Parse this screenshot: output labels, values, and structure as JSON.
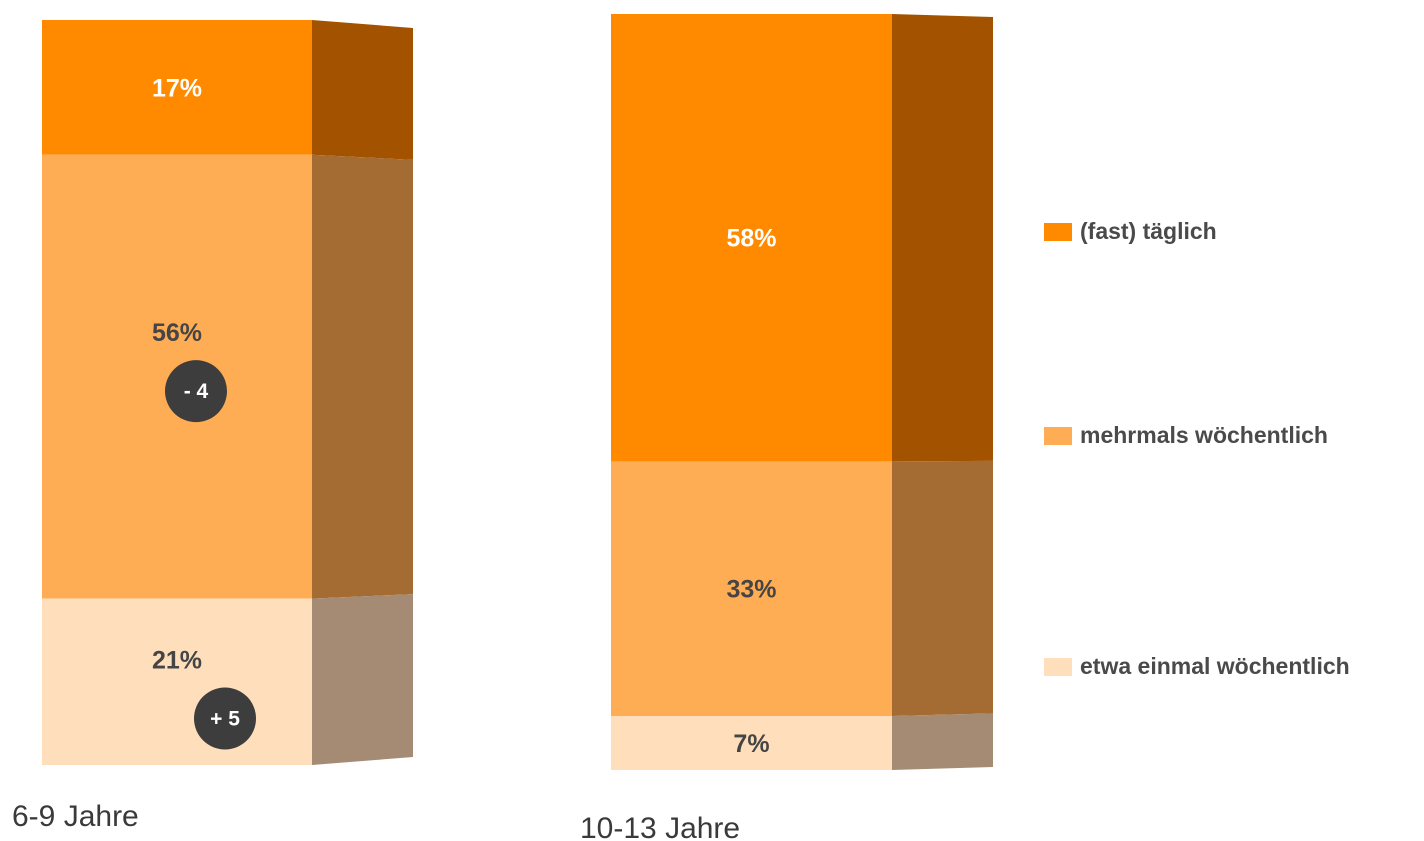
{
  "chart_data": {
    "type": "bar",
    "stacked": true,
    "categories": [
      "6-9 Jahre",
      "10-13 Jahre"
    ],
    "series": [
      {
        "name": "(fast) täglich",
        "color": "#ff8a00",
        "side_color": "#a35300",
        "label_color": "#ffffff",
        "values": [
          17,
          58
        ],
        "labels": [
          "17%",
          "58%"
        ]
      },
      {
        "name": "mehrmals wöchentlich",
        "color": "#ffad55",
        "side_color": "#a46c33",
        "label_color": "#454545",
        "values": [
          56,
          33
        ],
        "labels": [
          "56%",
          "33%"
        ]
      },
      {
        "name": "etwa einmal wöchentlich",
        "color": "#ffdfbb",
        "side_color": "#a58b73",
        "label_color": "#454545",
        "values": [
          21,
          7
        ],
        "labels": [
          "21%",
          "7%"
        ]
      }
    ],
    "change_badges": [
      {
        "category": "6-9 Jahre",
        "series": "mehrmals wöchentlich",
        "value": -4,
        "label": "- 4"
      },
      {
        "category": "6-9 Jahre",
        "series": "etwa einmal wöchentlich",
        "value": 5,
        "label": "+ 5"
      }
    ],
    "badge_color": "#3d3d3d",
    "legend_position": "right"
  }
}
